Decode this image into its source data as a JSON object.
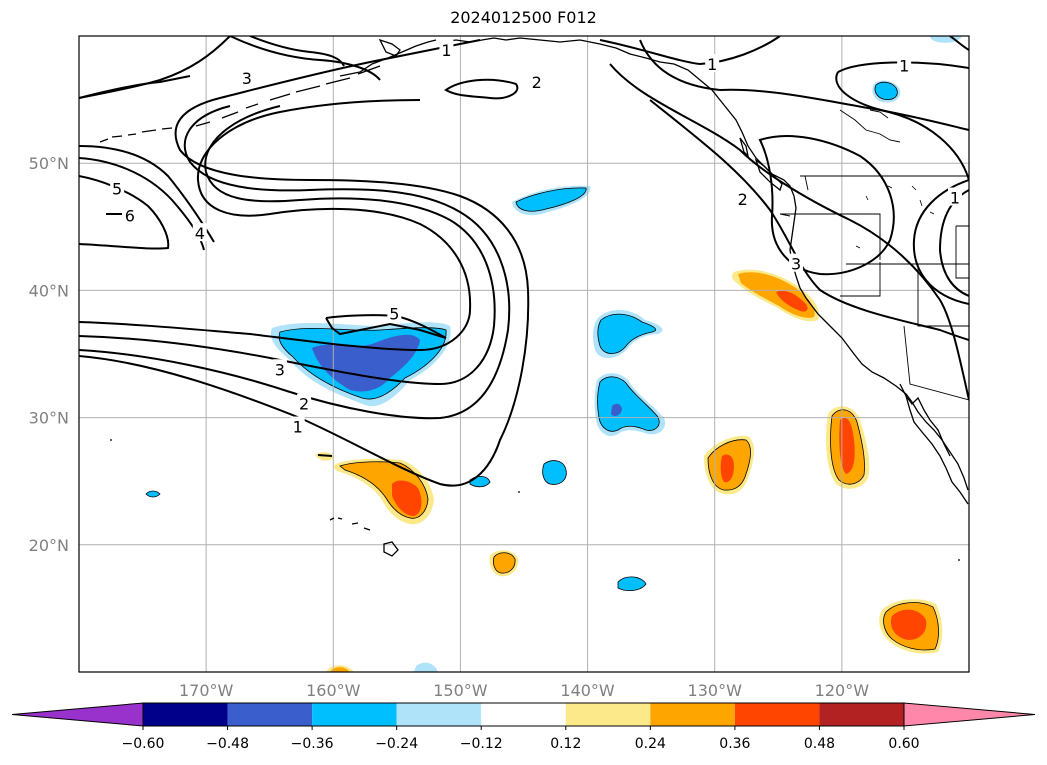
{
  "title": "2024012500 F012",
  "map": {
    "lat_range": [
      10,
      60
    ],
    "lon_range": [
      -180,
      -110
    ],
    "lat_ticks": [
      {
        "value": 20,
        "label": "20°N"
      },
      {
        "value": 30,
        "label": "30°N"
      },
      {
        "value": 40,
        "label": "40°N"
      },
      {
        "value": 50,
        "label": "50°N"
      }
    ],
    "lon_ticks": [
      {
        "value": -170,
        "label": "170°W"
      },
      {
        "value": -160,
        "label": "160°W"
      },
      {
        "value": -150,
        "label": "150°W"
      },
      {
        "value": -140,
        "label": "140°W"
      },
      {
        "value": -130,
        "label": "130°W"
      },
      {
        "value": -120,
        "label": "120°W"
      }
    ],
    "grid": true,
    "contour_color": "#000000",
    "contour_labels": [
      {
        "text": "6",
        "lon": -176,
        "lat": 45.9
      },
      {
        "text": "5",
        "lon": -177,
        "lat": 48.0
      },
      {
        "text": "4",
        "lon": -170.5,
        "lat": 44.5
      },
      {
        "text": "3",
        "lon": -166.8,
        "lat": 56.7
      },
      {
        "text": "5",
        "lon": -155.2,
        "lat": 38.2
      },
      {
        "text": "3",
        "lon": -164.2,
        "lat": 33.8
      },
      {
        "text": "2",
        "lon": -162.3,
        "lat": 31.1
      },
      {
        "text": "1",
        "lon": -162.8,
        "lat": 29.3
      },
      {
        "text": "1",
        "lon": -151.1,
        "lat": 58.9
      },
      {
        "text": "2",
        "lon": -144.0,
        "lat": 56.4
      },
      {
        "text": "1",
        "lon": -130.2,
        "lat": 57.8
      },
      {
        "text": "1",
        "lon": -115.1,
        "lat": 57.7
      },
      {
        "text": "2",
        "lon": -127.8,
        "lat": 47.2
      },
      {
        "text": "3",
        "lon": -123.6,
        "lat": 42.1
      },
      {
        "text": "1",
        "lon": -111.1,
        "lat": 47.3
      }
    ]
  },
  "colorbar": {
    "colors": [
      "#9932cc",
      "#00008b",
      "#3a5fcd",
      "#00bfff",
      "#aee3fa",
      "#ffffff",
      "#fce98a",
      "#ffa500",
      "#ff4500",
      "#b22222",
      "#ff88aa"
    ],
    "tick_labels": [
      "−0.60",
      "−0.48",
      "−0.36",
      "−0.24",
      "−0.12",
      "0.12",
      "0.24",
      "0.36",
      "0.48",
      "0.60"
    ]
  }
}
